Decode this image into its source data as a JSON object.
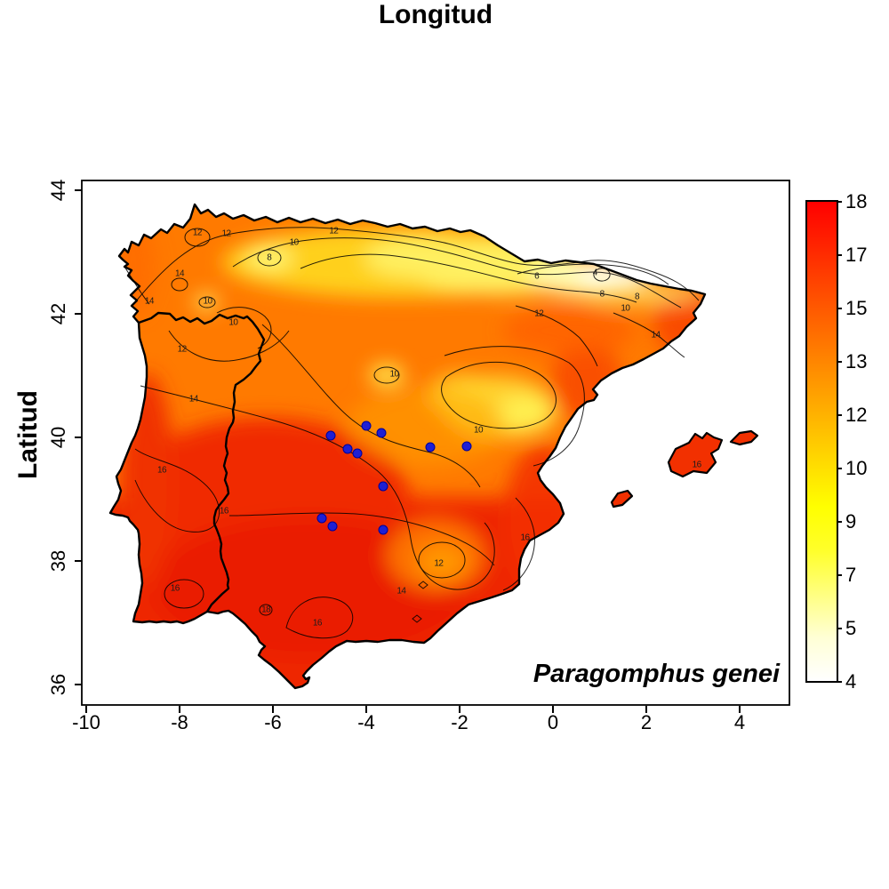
{
  "figure": {
    "xlabel": "Longitud",
    "ylabel": "Latitud",
    "species_label": "Paragomphus genei",
    "background_color": "#ffffff",
    "map_region": "Iberian Peninsula with Balearic Islands"
  },
  "chart_data": {
    "type": "heatmap",
    "title": "",
    "xlabel": "Longitud",
    "ylabel": "Latitud",
    "xlim": [
      -10.1,
      5.0
    ],
    "ylim": [
      35.7,
      44.2
    ],
    "grid": false,
    "x_ticks": [
      -10,
      -8,
      -6,
      -4,
      -2,
      0,
      2,
      4
    ],
    "y_ticks": [
      36,
      38,
      40,
      42,
      44
    ],
    "surface": "interpolated temperature-like surface over Iberia, low (pale) in north/Pyrenees, high (red) in south-west",
    "contour_levels": [
      4,
      6,
      8,
      10,
      12,
      14,
      16,
      18
    ],
    "contour_labels": [
      {
        "value": 12,
        "lon": -7.0,
        "lat": 43.3
      },
      {
        "value": 12,
        "lon": -4.7,
        "lat": 43.34
      },
      {
        "value": 10,
        "lon": -5.55,
        "lat": 43.15
      },
      {
        "value": 8,
        "lon": -6.08,
        "lat": 42.9
      },
      {
        "value": 12,
        "lon": -7.62,
        "lat": 43.31
      },
      {
        "value": 14,
        "lon": -8.0,
        "lat": 42.65
      },
      {
        "value": 14,
        "lon": -8.65,
        "lat": 42.2
      },
      {
        "value": 10,
        "lon": -7.4,
        "lat": 42.2
      },
      {
        "value": 10,
        "lon": -6.85,
        "lat": 41.85
      },
      {
        "value": 12,
        "lon": -7.95,
        "lat": 41.42
      },
      {
        "value": 6,
        "lon": -0.35,
        "lat": 42.6
      },
      {
        "value": 4,
        "lon": 0.9,
        "lat": 42.66
      },
      {
        "value": 8,
        "lon": 1.05,
        "lat": 42.32
      },
      {
        "value": 8,
        "lon": 1.8,
        "lat": 42.28
      },
      {
        "value": 10,
        "lon": 1.55,
        "lat": 42.08
      },
      {
        "value": 12,
        "lon": -0.3,
        "lat": 42.0
      },
      {
        "value": 14,
        "lon": 2.2,
        "lat": 41.66
      },
      {
        "value": 10,
        "lon": -1.6,
        "lat": 40.12
      },
      {
        "value": 10,
        "lon": -3.4,
        "lat": 41.02
      },
      {
        "value": 14,
        "lon": -7.7,
        "lat": 40.62
      },
      {
        "value": 16,
        "lon": -8.38,
        "lat": 39.47
      },
      {
        "value": 16,
        "lon": -7.05,
        "lat": 38.8
      },
      {
        "value": 16,
        "lon": -8.1,
        "lat": 37.55
      },
      {
        "value": 18,
        "lon": -6.15,
        "lat": 37.21
      },
      {
        "value": 16,
        "lon": -5.05,
        "lat": 37.0
      },
      {
        "value": 14,
        "lon": -3.25,
        "lat": 37.51
      },
      {
        "value": 12,
        "lon": -2.45,
        "lat": 37.95
      },
      {
        "value": 16,
        "lon": -0.6,
        "lat": 38.37
      },
      {
        "value": 16,
        "lon": 3.08,
        "lat": 39.55
      }
    ],
    "colorbar": {
      "min": 4,
      "max": 18,
      "tick_labels_top_to_bottom": [
        18,
        17,
        15,
        13,
        12,
        10,
        9,
        7,
        5,
        4
      ],
      "colors_bottom_to_top": [
        "#FFFFFF",
        "#FFFFD5",
        "#FFFF80",
        "#FFFF2A",
        "#FFFF00",
        "#FFDB00",
        "#FFB600",
        "#FF9200",
        "#FF6D00",
        "#FF4900",
        "#FF2400",
        "#FF0000"
      ]
    },
    "occurrences": {
      "species": "Paragomphus genei",
      "marker_color": "#1f1fd4",
      "points_lonlat": [
        [
          -4.0,
          40.19
        ],
        [
          -3.67,
          40.07
        ],
        [
          -4.76,
          40.03
        ],
        [
          -4.4,
          39.81
        ],
        [
          -4.2,
          39.74
        ],
        [
          -2.63,
          39.84
        ],
        [
          -1.85,
          39.86
        ],
        [
          -3.64,
          39.21
        ],
        [
          -4.95,
          38.69
        ],
        [
          -4.72,
          38.56
        ],
        [
          -3.64,
          38.5
        ]
      ]
    }
  }
}
